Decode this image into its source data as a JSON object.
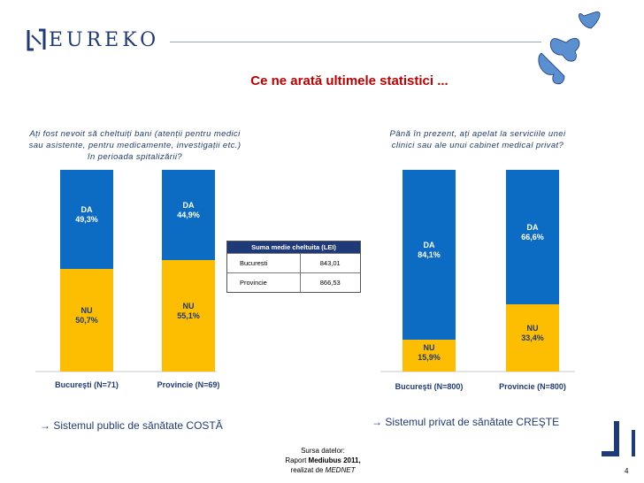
{
  "header": {
    "logo_text": "EUREKO",
    "title": "Ce ne arată ultimele statistici ..."
  },
  "chart_data": [
    {
      "type": "bar",
      "stacked": true,
      "percent": true,
      "title": "Ați fost nevoit să cheltuiți bani (atenții pentru medici sau asistente, pentru medicamente, investigații etc.) în perioada spitalizării?",
      "categories": [
        "Bucureşti (N=71)",
        "Provincie (N=69)"
      ],
      "series": [
        {
          "name": "DA",
          "values": [
            49.3,
            44.9
          ],
          "labels": [
            "49,3%",
            "44,9%"
          ],
          "color": "#0c6bc2"
        },
        {
          "name": "NU",
          "values": [
            50.7,
            55.1
          ],
          "labels": [
            "50,7%",
            "55,1%"
          ],
          "color": "#fdbd00"
        }
      ]
    },
    {
      "type": "bar",
      "stacked": true,
      "percent": true,
      "title": "Până în prezent, ați apelat la serviciile unei clinici sau ale unui cabinet medical privat?",
      "categories": [
        "Bucureşti (N=800)",
        "Provincie (N=800)"
      ],
      "series": [
        {
          "name": "DA",
          "values": [
            84.1,
            66.6
          ],
          "labels": [
            "84,1%",
            "66,6%"
          ],
          "color": "#0c6bc2"
        },
        {
          "name": "NU",
          "values": [
            15.9,
            33.4
          ],
          "labels": [
            "15,9%",
            "33,4%"
          ],
          "color": "#fdbd00"
        }
      ]
    }
  ],
  "table": {
    "header": "Suma medie cheltuita (LEI)",
    "rows": [
      {
        "label": "Bucuresti",
        "value": "843,01"
      },
      {
        "label": "Provincie",
        "value": "866,53"
      }
    ]
  },
  "conclusions": {
    "left": "→ Sistemul public de sănătate COSTĂ",
    "right": "→ Sistemul privat de sănătate CREŞTE"
  },
  "source": {
    "line1": "Sursa datelor:",
    "line2a": "Raport ",
    "line2b": "Mediubus 2011,",
    "line3a": "realizat de ",
    "line3b": "MEDNET"
  },
  "page_number": "4"
}
